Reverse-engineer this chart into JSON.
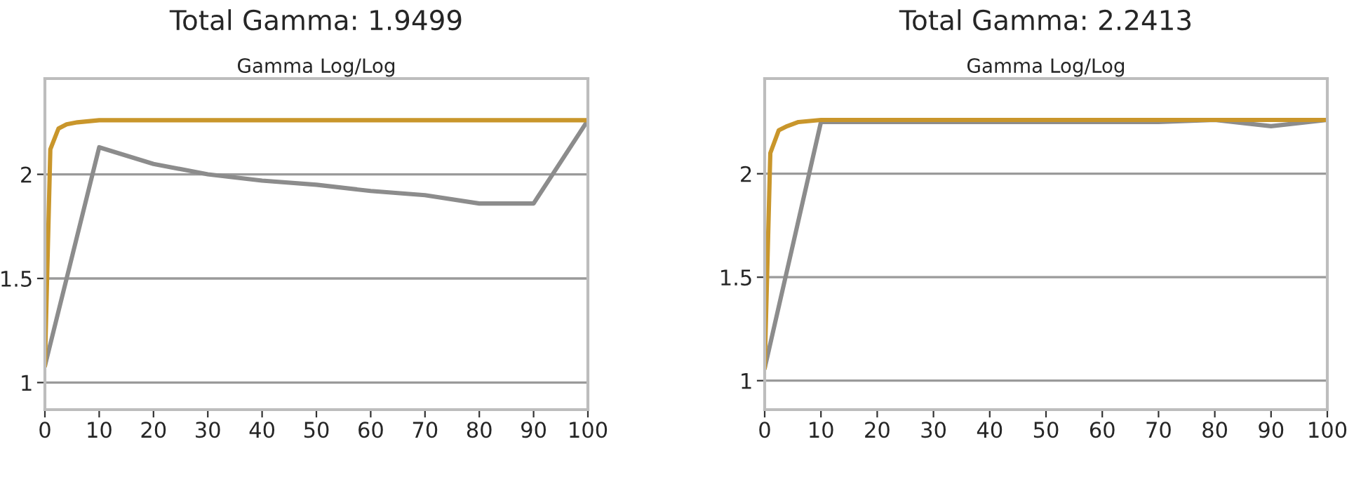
{
  "chart_data": [
    {
      "type": "line",
      "title": "Total Gamma: 1.9499",
      "subtitle": "Gamma Log/Log",
      "xlim": [
        0,
        100
      ],
      "xticks": [
        0,
        10,
        20,
        30,
        40,
        50,
        60,
        70,
        80,
        90,
        100
      ],
      "ylim": [
        0.87,
        2.46
      ],
      "yticks": [
        1,
        1.5,
        2
      ],
      "grid": "y",
      "legend": false,
      "series": [
        {
          "color": "#8c8c8c",
          "x": [
            0,
            10,
            20,
            30,
            40,
            50,
            60,
            70,
            80,
            90,
            100
          ],
          "values": [
            1.08,
            2.13,
            2.05,
            2.0,
            1.97,
            1.95,
            1.92,
            1.9,
            1.86,
            1.86,
            2.26
          ]
        },
        {
          "color": "#c9962b",
          "x": [
            0,
            1,
            2.5,
            4,
            6,
            10,
            100
          ],
          "values": [
            1.08,
            2.12,
            2.22,
            2.24,
            2.25,
            2.26,
            2.26
          ]
        }
      ]
    },
    {
      "type": "line",
      "title": "Total Gamma: 2.2413",
      "subtitle": "Gamma Log/Log",
      "xlim": [
        0,
        100
      ],
      "xticks": [
        0,
        10,
        20,
        30,
        40,
        50,
        60,
        70,
        80,
        90,
        100
      ],
      "ylim": [
        0.86,
        2.46
      ],
      "yticks": [
        1,
        1.5,
        2
      ],
      "grid": "y",
      "legend": false,
      "series": [
        {
          "color": "#8c8c8c",
          "x": [
            0,
            10,
            20,
            30,
            40,
            50,
            60,
            70,
            80,
            90,
            100
          ],
          "values": [
            1.06,
            2.25,
            2.25,
            null,
            null,
            null,
            null,
            2.25,
            2.26,
            2.23,
            2.26
          ]
        },
        {
          "color": "#c9962b",
          "x": [
            0,
            1,
            2.5,
            4,
            6,
            10,
            100
          ],
          "values": [
            1.06,
            2.1,
            2.21,
            2.23,
            2.25,
            2.26,
            2.26
          ]
        }
      ]
    }
  ]
}
